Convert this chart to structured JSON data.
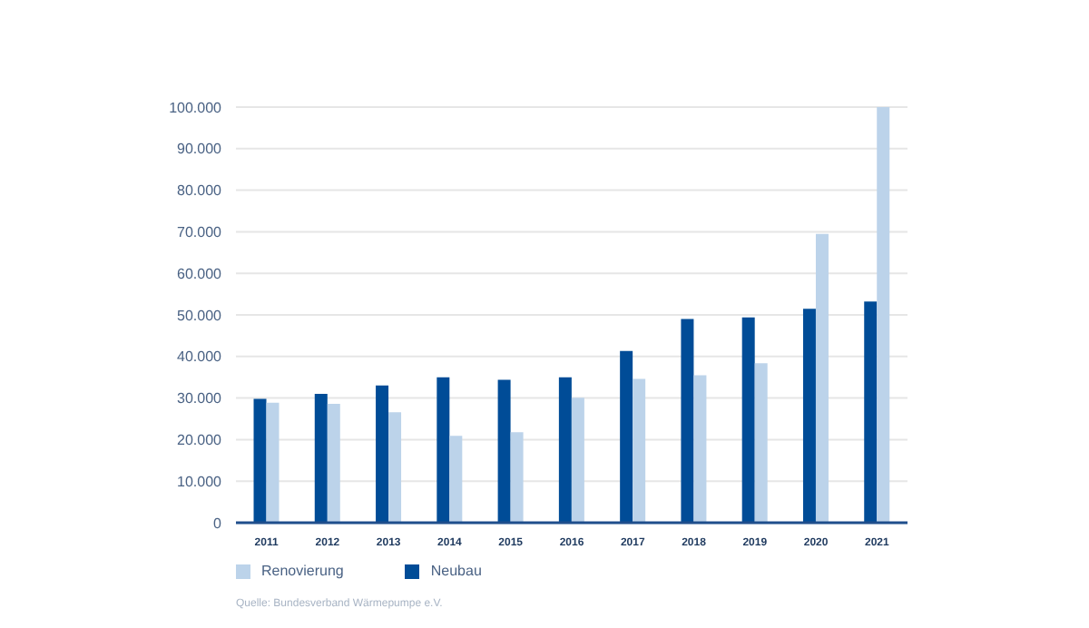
{
  "chart_data": {
    "type": "bar",
    "categories": [
      "2011",
      "2012",
      "2013",
      "2014",
      "2015",
      "2016",
      "2017",
      "2018",
      "2019",
      "2020",
      "2021"
    ],
    "series": [
      {
        "name": "Neubau",
        "color": "#004c97",
        "values": [
          29800,
          31000,
          33000,
          35000,
          34400,
          35000,
          41300,
          49000,
          49400,
          51500,
          53200
        ]
      },
      {
        "name": "Renovierung",
        "color": "#bcd3ea",
        "values": [
          28900,
          28600,
          26600,
          20900,
          21800,
          30100,
          34600,
          35500,
          38400,
          69500,
          100000
        ]
      }
    ],
    "ylim": [
      0,
      100000
    ],
    "yticks": [
      {
        "value": 0,
        "label": "0"
      },
      {
        "value": 10000,
        "label": "10.000"
      },
      {
        "value": 20000,
        "label": "20.000"
      },
      {
        "value": 30000,
        "label": "30.000"
      },
      {
        "value": 40000,
        "label": "40.000"
      },
      {
        "value": 50000,
        "label": "50.000"
      },
      {
        "value": 60000,
        "label": "60.000"
      },
      {
        "value": 70000,
        "label": "70.000"
      },
      {
        "value": 80000,
        "label": "80.000"
      },
      {
        "value": 90000,
        "label": "90.000"
      },
      {
        "value": 100000,
        "label": "100.000"
      }
    ],
    "grid": "y",
    "legend": "bottom left",
    "annotations": [
      "Quelle: Bundesverband Wärmepumpe e.V."
    ]
  }
}
